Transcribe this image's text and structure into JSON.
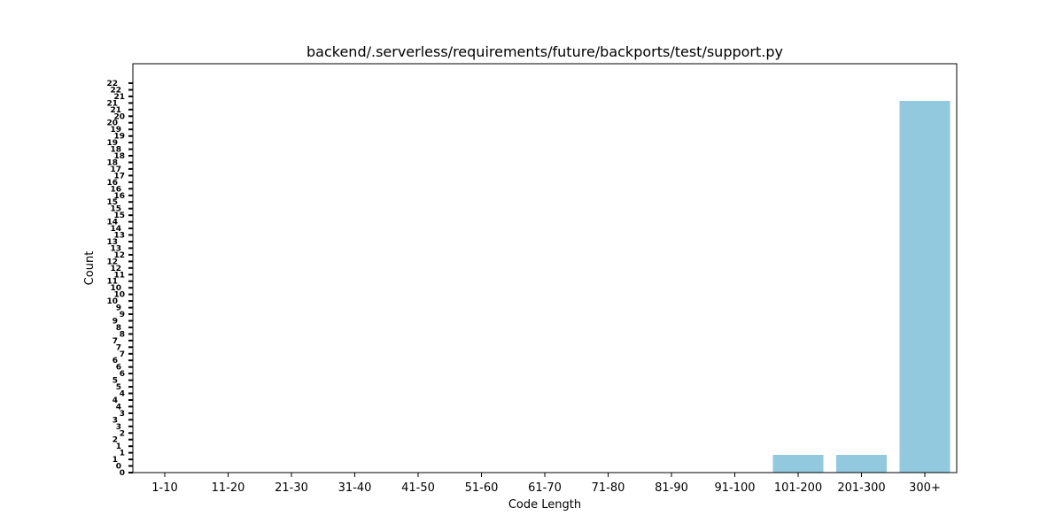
{
  "chart_data": {
    "type": "bar",
    "title": "backend/.serverless/requirements/future/backports/test/support.py",
    "xlabel": "Code Length",
    "ylabel": "Count",
    "categories": [
      "1-10",
      "11-20",
      "21-30",
      "31-40",
      "41-50",
      "51-60",
      "61-70",
      "71-80",
      "81-90",
      "91-100",
      "101-200",
      "201-300",
      "300+"
    ],
    "values": [
      0,
      0,
      0,
      0,
      0,
      0,
      0,
      0,
      0,
      0,
      1,
      1,
      21
    ],
    "ylim": [
      0,
      22
    ],
    "ytick_count": 60,
    "grid": false,
    "legend": "none",
    "bar_color": "#92c9de"
  }
}
